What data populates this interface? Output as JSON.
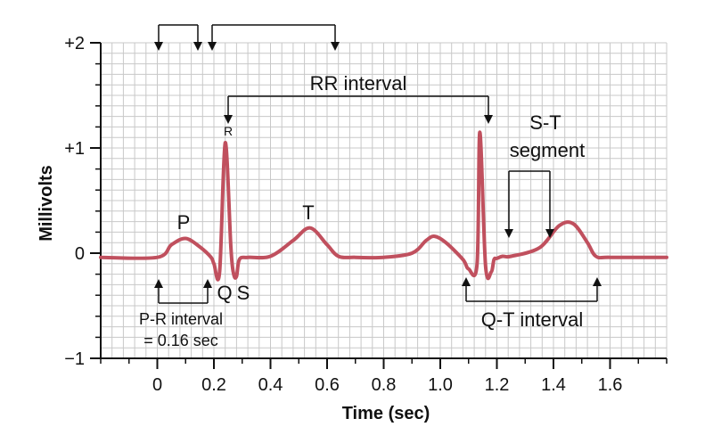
{
  "chart_data": {
    "type": "line",
    "title": "",
    "xlabel": "Time (sec)",
    "ylabel": "Millivolts",
    "xlim": [
      -0.2,
      1.8
    ],
    "ylim": [
      -1,
      2
    ],
    "grid": true,
    "x_ticks": [
      0,
      0.2,
      0.4,
      0.6,
      0.8,
      1.0,
      1.2,
      1.4,
      1.6
    ],
    "x_tick_labels": [
      "0",
      "0.2",
      "0.4",
      "0.6",
      "0.8",
      "1.0",
      "1.2",
      "1.4",
      "1.6"
    ],
    "y_ticks": [
      2,
      1,
      0,
      -1
    ],
    "y_tick_labels": [
      "+2",
      "+1",
      "0",
      "−1"
    ],
    "line_color": "#c0505e",
    "grid_color": "#c8c8c8",
    "series": [
      {
        "x": [
          -0.2,
          0.0,
          0.05,
          0.1,
          0.15,
          0.19,
          0.2,
          0.22,
          0.24,
          0.26,
          0.27,
          0.28,
          0.29,
          0.32,
          0.4,
          0.48,
          0.54,
          0.6,
          0.64,
          0.7,
          0.8,
          0.9,
          0.95,
          0.98,
          1.02,
          1.08,
          1.1,
          1.13,
          1.14,
          1.16,
          1.18,
          1.19,
          1.2,
          1.22,
          1.25,
          1.35,
          1.42,
          1.47,
          1.52,
          1.55,
          1.6,
          1.8
        ],
        "y": [
          -0.04,
          -0.04,
          0.08,
          0.14,
          0.06,
          -0.04,
          -0.1,
          -0.18,
          1.05,
          0.05,
          -0.2,
          -0.22,
          -0.06,
          -0.04,
          -0.03,
          0.12,
          0.24,
          0.08,
          -0.03,
          -0.04,
          -0.04,
          0.0,
          0.12,
          0.16,
          0.1,
          -0.06,
          -0.15,
          -0.1,
          1.15,
          -0.12,
          -0.18,
          -0.06,
          -0.05,
          -0.03,
          -0.03,
          0.05,
          0.26,
          0.28,
          0.1,
          -0.03,
          -0.04,
          -0.04
        ]
      }
    ],
    "annotations": {
      "p": "P",
      "r": "R",
      "t": "T",
      "q": "Q",
      "s": "S",
      "rr_interval": "RR interval",
      "st_segment_line1": "S-T",
      "st_segment_line2": "segment",
      "qt_interval": "Q-T interval",
      "pr_interval_line1": "P-R interval",
      "pr_interval_line2": "= 0.16 sec"
    }
  }
}
